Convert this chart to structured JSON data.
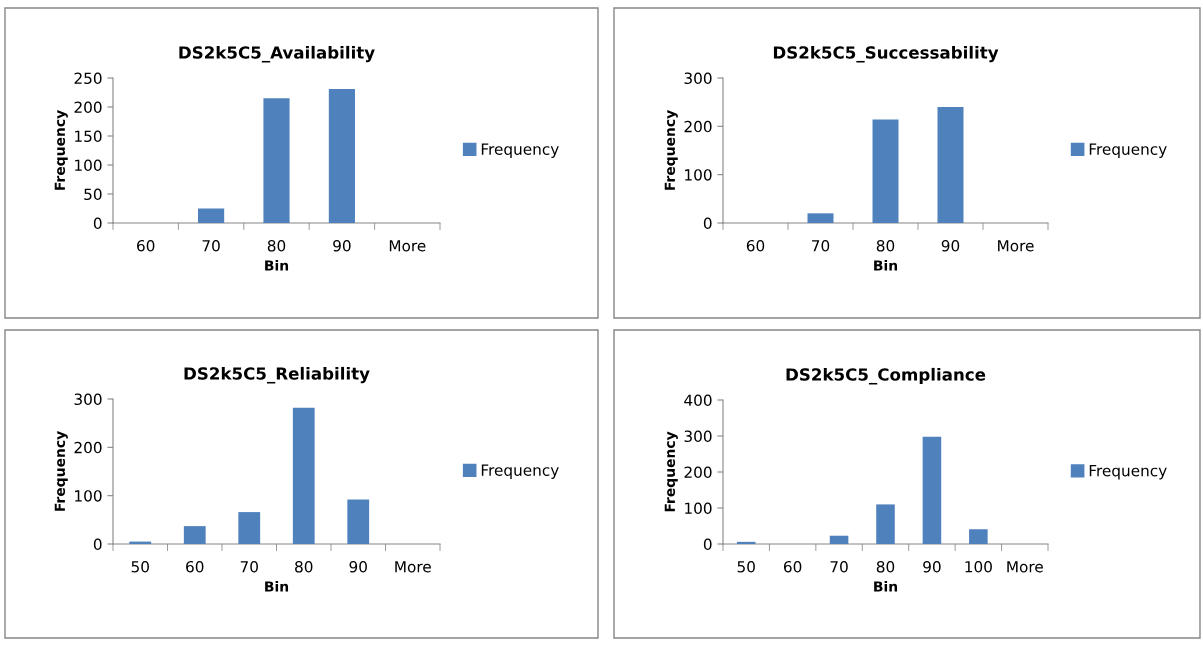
{
  "chart_data": [
    {
      "type": "bar",
      "title": "DS2k5C5_Availability",
      "xlabel": "Bin",
      "ylabel": "Frequency",
      "categories": [
        "60",
        "70",
        "80",
        "90",
        "More"
      ],
      "series": [
        {
          "name": "Frequency",
          "color": "#4f81bd",
          "values": [
            0,
            25,
            215,
            231,
            0
          ]
        }
      ],
      "ylim": [
        0,
        250
      ],
      "yticks": [
        0,
        50,
        100,
        150,
        200,
        250
      ],
      "grid": false,
      "legend": "right"
    },
    {
      "type": "bar",
      "title": "DS2k5C5_Successability",
      "xlabel": "Bin",
      "ylabel": "Frequency",
      "categories": [
        "60",
        "70",
        "80",
        "90",
        "More"
      ],
      "series": [
        {
          "name": "Frequency",
          "color": "#4f81bd",
          "values": [
            0,
            20,
            214,
            240,
            0
          ]
        }
      ],
      "ylim": [
        0,
        300
      ],
      "yticks": [
        0,
        100,
        200,
        300
      ],
      "grid": false,
      "legend": "right"
    },
    {
      "type": "bar",
      "title": "DS2k5C5_Reliability",
      "xlabel": "Bin",
      "ylabel": "Frequency",
      "categories": [
        "50",
        "60",
        "70",
        "80",
        "90",
        "More"
      ],
      "series": [
        {
          "name": "Frequency",
          "color": "#4f81bd",
          "values": [
            5,
            37,
            66,
            282,
            92,
            0
          ]
        }
      ],
      "ylim": [
        0,
        300
      ],
      "yticks": [
        0,
        100,
        200,
        300
      ],
      "grid": false,
      "legend": "right"
    },
    {
      "type": "bar",
      "title": "DS2k5C5_Compliance",
      "xlabel": "Bin",
      "ylabel": "Frequency",
      "categories": [
        "50",
        "60",
        "70",
        "80",
        "90",
        "100",
        "More"
      ],
      "series": [
        {
          "name": "Frequency",
          "color": "#4f81bd",
          "values": [
            6,
            0,
            23,
            110,
            298,
            41,
            0
          ]
        }
      ],
      "ylim": [
        0,
        400
      ],
      "yticks": [
        0,
        100,
        200,
        300,
        400
      ],
      "grid": false,
      "legend": "right"
    }
  ]
}
